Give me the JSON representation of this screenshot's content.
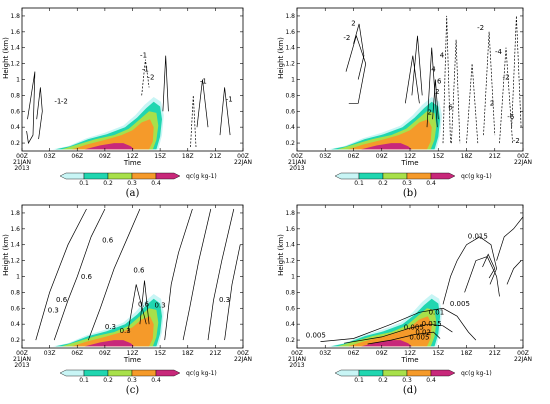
{
  "chart_data": {
    "type": "heatmap",
    "colorbar": {
      "levels": [
        "0.1",
        "0.2",
        "0.3",
        "0.4"
      ],
      "label": "qc(g kg-1)",
      "colors": [
        "#c8f5f5",
        "#20d6b0",
        "#a8e04a",
        "#f59a2a",
        "#c8287a"
      ]
    },
    "x_ticks": [
      "00Z",
      "03Z",
      "06Z",
      "09Z",
      "12Z",
      "15Z",
      "18Z",
      "21Z",
      "00Z"
    ],
    "x_tick_sub": {
      "first": [
        "21JAN",
        "2013"
      ],
      "last": [
        "22JAN"
      ]
    },
    "xlabel": "Time",
    "y_ticks": [
      "0.2",
      "0.4",
      "0.6",
      "0.8",
      "1",
      "1.2",
      "1.4",
      "1.6",
      "1.8"
    ],
    "ylabel": "Height (km)",
    "ylim": [
      0.1,
      1.9
    ],
    "qc_field": {
      "center_time_hours": 11.5,
      "center_height_km": 0.25,
      "description_levels": [
        0.1,
        0.2,
        0.3,
        0.4
      ]
    },
    "panels": [
      {
        "label": "(a)",
        "contour_labels": [
          "-1",
          "-2",
          "-1",
          "-1",
          "-2",
          "-1",
          "-1"
        ]
      },
      {
        "label": "(b)",
        "contour_labels": [
          "2",
          "-2",
          "-2",
          "-4",
          "-2",
          "6",
          "4",
          "2",
          "4",
          "2",
          "6",
          "2",
          "-6",
          "-2"
        ]
      },
      {
        "label": "(c)",
        "contour_labels": [
          "0.6",
          "0.6",
          "0.6",
          "0.3",
          "0.6",
          "0.3",
          "0.3",
          "0.6",
          "0.3",
          "0.3"
        ]
      },
      {
        "label": "(d)",
        "contour_labels": [
          "0.005",
          "0.015",
          "0.005",
          "0.01",
          "0.005",
          "0.015",
          "0.005",
          "0.02"
        ]
      }
    ]
  }
}
